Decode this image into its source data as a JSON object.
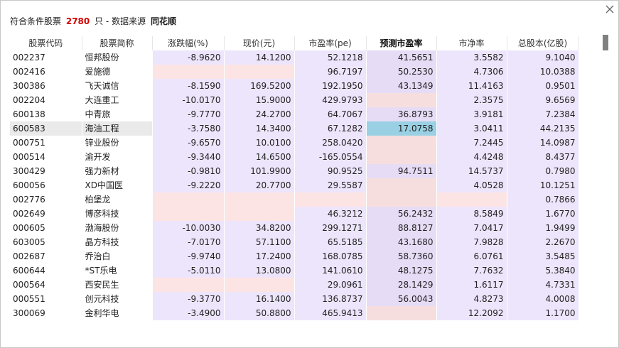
{
  "header": {
    "prefix": "符合条件股票",
    "count": "2780",
    "unit": "只",
    "separator": "-",
    "source_label": "数据来源",
    "source_name": "同花顺"
  },
  "columns": [
    "股票代码",
    "股票简称",
    "涨跌幅(%)",
    "现价(元)",
    "市盈率(pe)",
    "预测市盈率",
    "市净率",
    "总股本(亿股)"
  ],
  "rows": [
    [
      "002237",
      "恒邦股份",
      "-8.9620",
      "14.1200",
      "52.1218",
      "41.5651",
      "3.5582",
      "9.1040"
    ],
    [
      "002416",
      "爱施德",
      "",
      "",
      "96.7197",
      "50.2530",
      "4.7306",
      "10.0388"
    ],
    [
      "300386",
      "飞天诚信",
      "-8.1590",
      "169.5200",
      "192.1950",
      "43.1349",
      "11.4163",
      "0.9501"
    ],
    [
      "002204",
      "大连重工",
      "-10.0170",
      "15.9000",
      "429.9793",
      "",
      "2.3575",
      "9.6569"
    ],
    [
      "600138",
      "中青旅",
      "-9.7770",
      "24.2700",
      "64.7067",
      "36.8793",
      "3.9181",
      "7.2384"
    ],
    [
      "600583",
      "海油工程",
      "-3.7580",
      "14.3400",
      "67.1282",
      "17.0758",
      "3.0411",
      "44.2135"
    ],
    [
      "000751",
      "锌业股份",
      "-9.6570",
      "10.0100",
      "258.0420",
      "",
      "7.2445",
      "14.0987"
    ],
    [
      "000514",
      "渝开发",
      "-9.3440",
      "14.6500",
      "-165.0554",
      "",
      "4.4248",
      "8.4377"
    ],
    [
      "300429",
      "强力新材",
      "-0.9810",
      "101.9900",
      "90.9525",
      "94.7511",
      "14.5737",
      "0.7980"
    ],
    [
      "600056",
      "XD中国医",
      "-9.2220",
      "20.7700",
      "29.5587",
      "",
      "4.0528",
      "10.1251"
    ],
    [
      "002776",
      "柏堡龙",
      "",
      "",
      "",
      "",
      "",
      "0.7866"
    ],
    [
      "002649",
      "博彦科技",
      "",
      "",
      "46.3212",
      "56.2432",
      "8.5849",
      "1.6770"
    ],
    [
      "000605",
      "渤海股份",
      "-10.0030",
      "34.8200",
      "299.1271",
      "88.8127",
      "7.0417",
      "1.9499"
    ],
    [
      "603005",
      "晶方科技",
      "-7.0170",
      "57.1100",
      "65.5185",
      "43.1680",
      "7.9828",
      "2.2670"
    ],
    [
      "002687",
      "乔治白",
      "-9.9740",
      "17.2400",
      "168.0785",
      "58.7360",
      "6.0761",
      "3.5485"
    ],
    [
      "600644",
      "*ST乐电",
      "-5.0110",
      "13.0800",
      "141.0610",
      "48.1275",
      "7.7632",
      "5.3840"
    ],
    [
      "000564",
      "西安民生",
      "",
      "",
      "29.0961",
      "28.1429",
      "1.6117",
      "4.7331"
    ],
    [
      "000551",
      "创元科技",
      "-9.3770",
      "16.1400",
      "136.8737",
      "56.0043",
      "4.8273",
      "4.0008"
    ],
    [
      "300069",
      "金利华电",
      "-3.4900",
      "50.8800",
      "465.9413",
      "",
      "12.2092",
      "1.1700"
    ]
  ],
  "selected_row": "600583",
  "colors": {
    "count": "#d40000",
    "cell_lavender": "#ede5fb",
    "cell_pink": "#fde4e4",
    "cell_selected": "#9ad0e3",
    "row_highlight": "#eaeaea"
  },
  "icons": {
    "close": "close-icon"
  }
}
